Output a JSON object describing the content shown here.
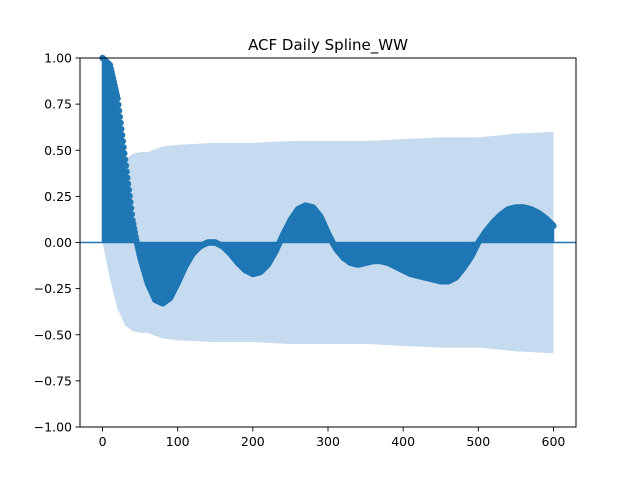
{
  "chart_data": {
    "type": "area",
    "title": "ACF Daily Spline_WW",
    "xlabel": "",
    "ylabel": "",
    "xlim": [
      -30,
      630
    ],
    "ylim": [
      -1.0,
      1.0
    ],
    "grid": false,
    "x_ticks": [
      0,
      100,
      200,
      300,
      400,
      500,
      600
    ],
    "x_tick_labels": [
      "0",
      "100",
      "200",
      "300",
      "400",
      "500",
      "600"
    ],
    "y_ticks": [
      -1.0,
      -0.75,
      -0.5,
      -0.25,
      0.0,
      0.25,
      0.5,
      0.75,
      1.0
    ],
    "y_tick_labels": [
      "−1.00",
      "−0.75",
      "−0.50",
      "−0.25",
      "0.00",
      "0.25",
      "0.50",
      "0.75",
      "1.00"
    ],
    "acf": {
      "lags": [
        0,
        10,
        20,
        30,
        40,
        45,
        50,
        60,
        70,
        80,
        90,
        100,
        110,
        120,
        130,
        140,
        150,
        160,
        170,
        180,
        190,
        200,
        210,
        220,
        230,
        240,
        250,
        260,
        270,
        280,
        290,
        300,
        310,
        320,
        330,
        340,
        350,
        360,
        370,
        380,
        390,
        400,
        410,
        420,
        430,
        440,
        450,
        460,
        470,
        480,
        490,
        500,
        510,
        520,
        530,
        540,
        550,
        560,
        570,
        580,
        590,
        600
      ],
      "values": [
        1.0,
        0.96,
        0.78,
        0.45,
        0.12,
        0.01,
        -0.08,
        -0.22,
        -0.31,
        -0.33,
        -0.3,
        -0.22,
        -0.13,
        -0.06,
        -0.02,
        0.0,
        0.0,
        -0.02,
        -0.06,
        -0.11,
        -0.15,
        -0.17,
        -0.16,
        -0.12,
        -0.05,
        0.04,
        0.12,
        0.18,
        0.2,
        0.19,
        0.14,
        0.05,
        -0.03,
        -0.08,
        -0.11,
        -0.12,
        -0.11,
        -0.1,
        -0.1,
        -0.11,
        -0.13,
        -0.15,
        -0.17,
        -0.18,
        -0.19,
        -0.2,
        -0.21,
        -0.21,
        -0.19,
        -0.14,
        -0.08,
        0.0,
        0.06,
        0.11,
        0.15,
        0.18,
        0.19,
        0.19,
        0.18,
        0.16,
        0.13,
        0.09
      ]
    },
    "confidence_band": {
      "lags": [
        0,
        5,
        10,
        20,
        30,
        40,
        50,
        60,
        80,
        100,
        150,
        200,
        250,
        300,
        350,
        400,
        450,
        500,
        550,
        600
      ],
      "upper": [
        0.0,
        0.1,
        0.2,
        0.36,
        0.45,
        0.48,
        0.49,
        0.49,
        0.52,
        0.53,
        0.54,
        0.54,
        0.55,
        0.55,
        0.55,
        0.56,
        0.57,
        0.57,
        0.59,
        0.6
      ]
    },
    "colors": {
      "stems": "#1f77b4",
      "band": "#c6dbef",
      "zero_line": "#1f77b4"
    }
  }
}
